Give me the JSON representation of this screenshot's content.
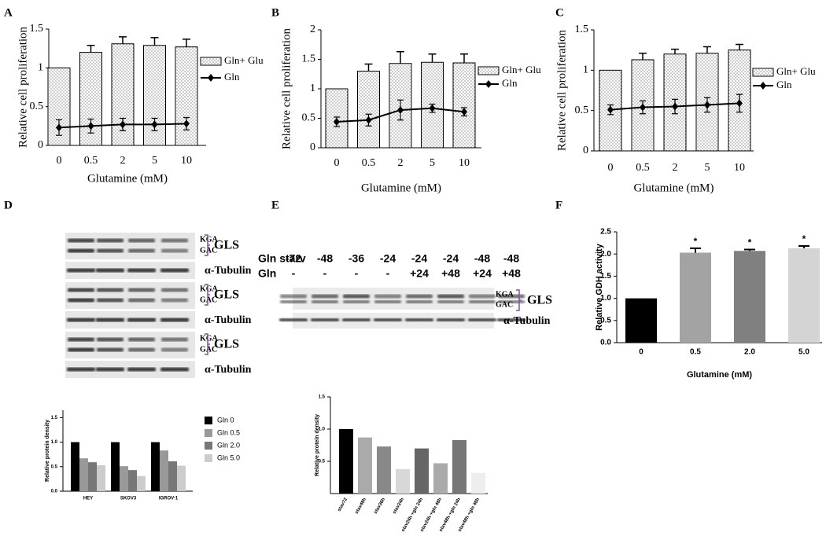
{
  "chart_data": [
    {
      "type": "combo",
      "label": "A",
      "ylabel": "Relative cell proliferation",
      "xlabel": "Glutamine (mM)",
      "categories": [
        "0",
        "0.5",
        "2",
        "5",
        "10"
      ],
      "series": [
        {
          "name": "Gln+ Glu",
          "type": "bar",
          "color": "#ffffff",
          "values": [
            1,
            1.2,
            1.31,
            1.29,
            1.27
          ],
          "errors": [
            0,
            0.09,
            0.09,
            0.1,
            0.1
          ]
        },
        {
          "name": "Gln",
          "type": "line",
          "color": "#000000",
          "values": [
            0.23,
            0.25,
            0.27,
            0.27,
            0.28
          ],
          "errors": [
            0.1,
            0.09,
            0.08,
            0.08,
            0.08
          ]
        }
      ],
      "ylim": [
        0,
        1.5
      ],
      "yticks": [
        0,
        0.5,
        1,
        1.5
      ]
    },
    {
      "type": "combo",
      "label": "B",
      "ylabel": "Relative cell proliferation",
      "xlabel": "Glutamine (mM)",
      "categories": [
        "0",
        "0.5",
        "2",
        "5",
        "10"
      ],
      "series": [
        {
          "name": "Gln+ Glu",
          "type": "bar",
          "color": "#ffffff",
          "values": [
            1,
            1.3,
            1.43,
            1.45,
            1.44
          ],
          "errors": [
            0,
            0.12,
            0.2,
            0.14,
            0.15
          ]
        },
        {
          "name": "Gln",
          "type": "line",
          "color": "#000000",
          "values": [
            0.44,
            0.47,
            0.64,
            0.67,
            0.61
          ],
          "errors": [
            0.08,
            0.1,
            0.17,
            0.07,
            0.07
          ]
        }
      ],
      "ylim": [
        0,
        2
      ],
      "yticks": [
        0,
        0.5,
        1,
        1.5,
        2
      ]
    },
    {
      "type": "combo",
      "label": "C",
      "ylabel": "Relative cell proliferation",
      "xlabel": "Glutamine (mM)",
      "categories": [
        "0",
        "0.5",
        "2",
        "5",
        "10"
      ],
      "series": [
        {
          "name": "Gln+ Glu",
          "type": "bar",
          "color": "#ffffff",
          "values": [
            1,
            1.13,
            1.2,
            1.21,
            1.25
          ],
          "errors": [
            0,
            0.08,
            0.06,
            0.08,
            0.07
          ]
        },
        {
          "name": "Gln",
          "type": "line",
          "color": "#000000",
          "values": [
            0.51,
            0.54,
            0.55,
            0.57,
            0.59
          ],
          "errors": [
            0.06,
            0.08,
            0.09,
            0.09,
            0.11
          ]
        }
      ],
      "ylim": [
        0,
        1.5
      ],
      "yticks": [
        0,
        0.5,
        1,
        1.5
      ]
    },
    {
      "type": "bar",
      "label": "F",
      "ylabel": "Relative GDH activity",
      "xlabel": "Glutamine (mM)",
      "categories": [
        "0",
        "0.5",
        "2.0",
        "5.0"
      ],
      "values": [
        1,
        2.03,
        2.07,
        2.13
      ],
      "errors": [
        0,
        0.1,
        0.03,
        0.05
      ],
      "colors": [
        "#000000",
        "#a3a3a3",
        "#808080",
        "#d4d4d4"
      ],
      "significance": [
        null,
        "*",
        "*",
        "*"
      ],
      "ylim": [
        0,
        2.5
      ],
      "yticks": [
        {
          "value": 0,
          "label": "0.0"
        },
        {
          "value": 0.5,
          "label": "0.5"
        },
        {
          "value": 1,
          "label": "1.0"
        },
        {
          "value": 1.5,
          "label": "1.5"
        },
        {
          "value": 2,
          "label": "2.0"
        },
        {
          "value": 2.5,
          "label": "2.5"
        }
      ]
    },
    {
      "type": "grouped",
      "ylabel": "Relative protein density",
      "categories": [
        "HEY",
        "SKOV3",
        "IGROV-1"
      ],
      "series": [
        {
          "name": "Gln 0",
          "color": "#000000",
          "values": [
            1,
            1,
            1
          ]
        },
        {
          "name": "Gln 0.5",
          "color": "#999999",
          "values": [
            0.67,
            0.51,
            0.83
          ]
        },
        {
          "name": "Gln 2.0",
          "color": "#777777",
          "values": [
            0.59,
            0.43,
            0.61
          ]
        },
        {
          "name": "Gln 5.0",
          "color": "#cccccc",
          "values": [
            0.53,
            0.31,
            0.52
          ]
        }
      ],
      "ylim": [
        0,
        1.65
      ],
      "yticks": [
        {
          "value": 0,
          "label": "0.0"
        },
        {
          "value": 0.5,
          "label": "0.5"
        },
        {
          "value": 1,
          "label": "1.0"
        },
        {
          "value": 1.5,
          "label": "1.5"
        }
      ]
    },
    {
      "type": "bar",
      "ylabel": "Relative protein density",
      "categories": [
        "stav72",
        "stav48h",
        "stav36h",
        "stav24h",
        "stav24h +gln 24h",
        "stav24h +gln 48h",
        "stav48h +gln 24h",
        "stav48h +gln 48h"
      ],
      "values": [
        1,
        0.87,
        0.73,
        0.38,
        0.7,
        0.47,
        0.83,
        0.32
      ],
      "colors": [
        "#000000",
        "#aaaaaa",
        "#888888",
        "#d8d8d8",
        "#666666",
        "#aaaaaa",
        "#777777",
        "#eeeeee"
      ],
      "ylim": [
        0,
        1.5
      ],
      "yticks": [
        {
          "value": 0.5,
          "label": "0.5"
        },
        {
          "value": 1,
          "label": "1.0"
        },
        {
          "value": 1.5,
          "label": "1.5"
        }
      ]
    }
  ],
  "blots": {
    "D": {
      "label": "D",
      "rows": [
        {
          "bands": [
            "KGA",
            "GAC"
          ],
          "protein": "GLS",
          "loading": "α-Tubulin"
        },
        {
          "bands": [
            "KGA",
            "GAC"
          ],
          "protein": "GLS",
          "loading": "α-Tubulin"
        },
        {
          "bands": [
            "KGA",
            "GAC"
          ],
          "protein": "GLS",
          "loading": "α-Tubulin"
        }
      ]
    },
    "E": {
      "label": "E",
      "header": [
        {
          "label": "Gln starv",
          "cells": [
            "-72",
            "-48",
            "-36",
            "-24",
            "-24",
            "-24",
            "-48",
            "-48"
          ]
        },
        {
          "label": "Gln",
          "cells": [
            "-",
            "-",
            "-",
            "-",
            "+24",
            "+48",
            "+24",
            "+48"
          ]
        }
      ],
      "bands": [
        "KGA",
        "GAC"
      ],
      "protein": "GLS",
      "loading": "α-Tubulin"
    }
  }
}
